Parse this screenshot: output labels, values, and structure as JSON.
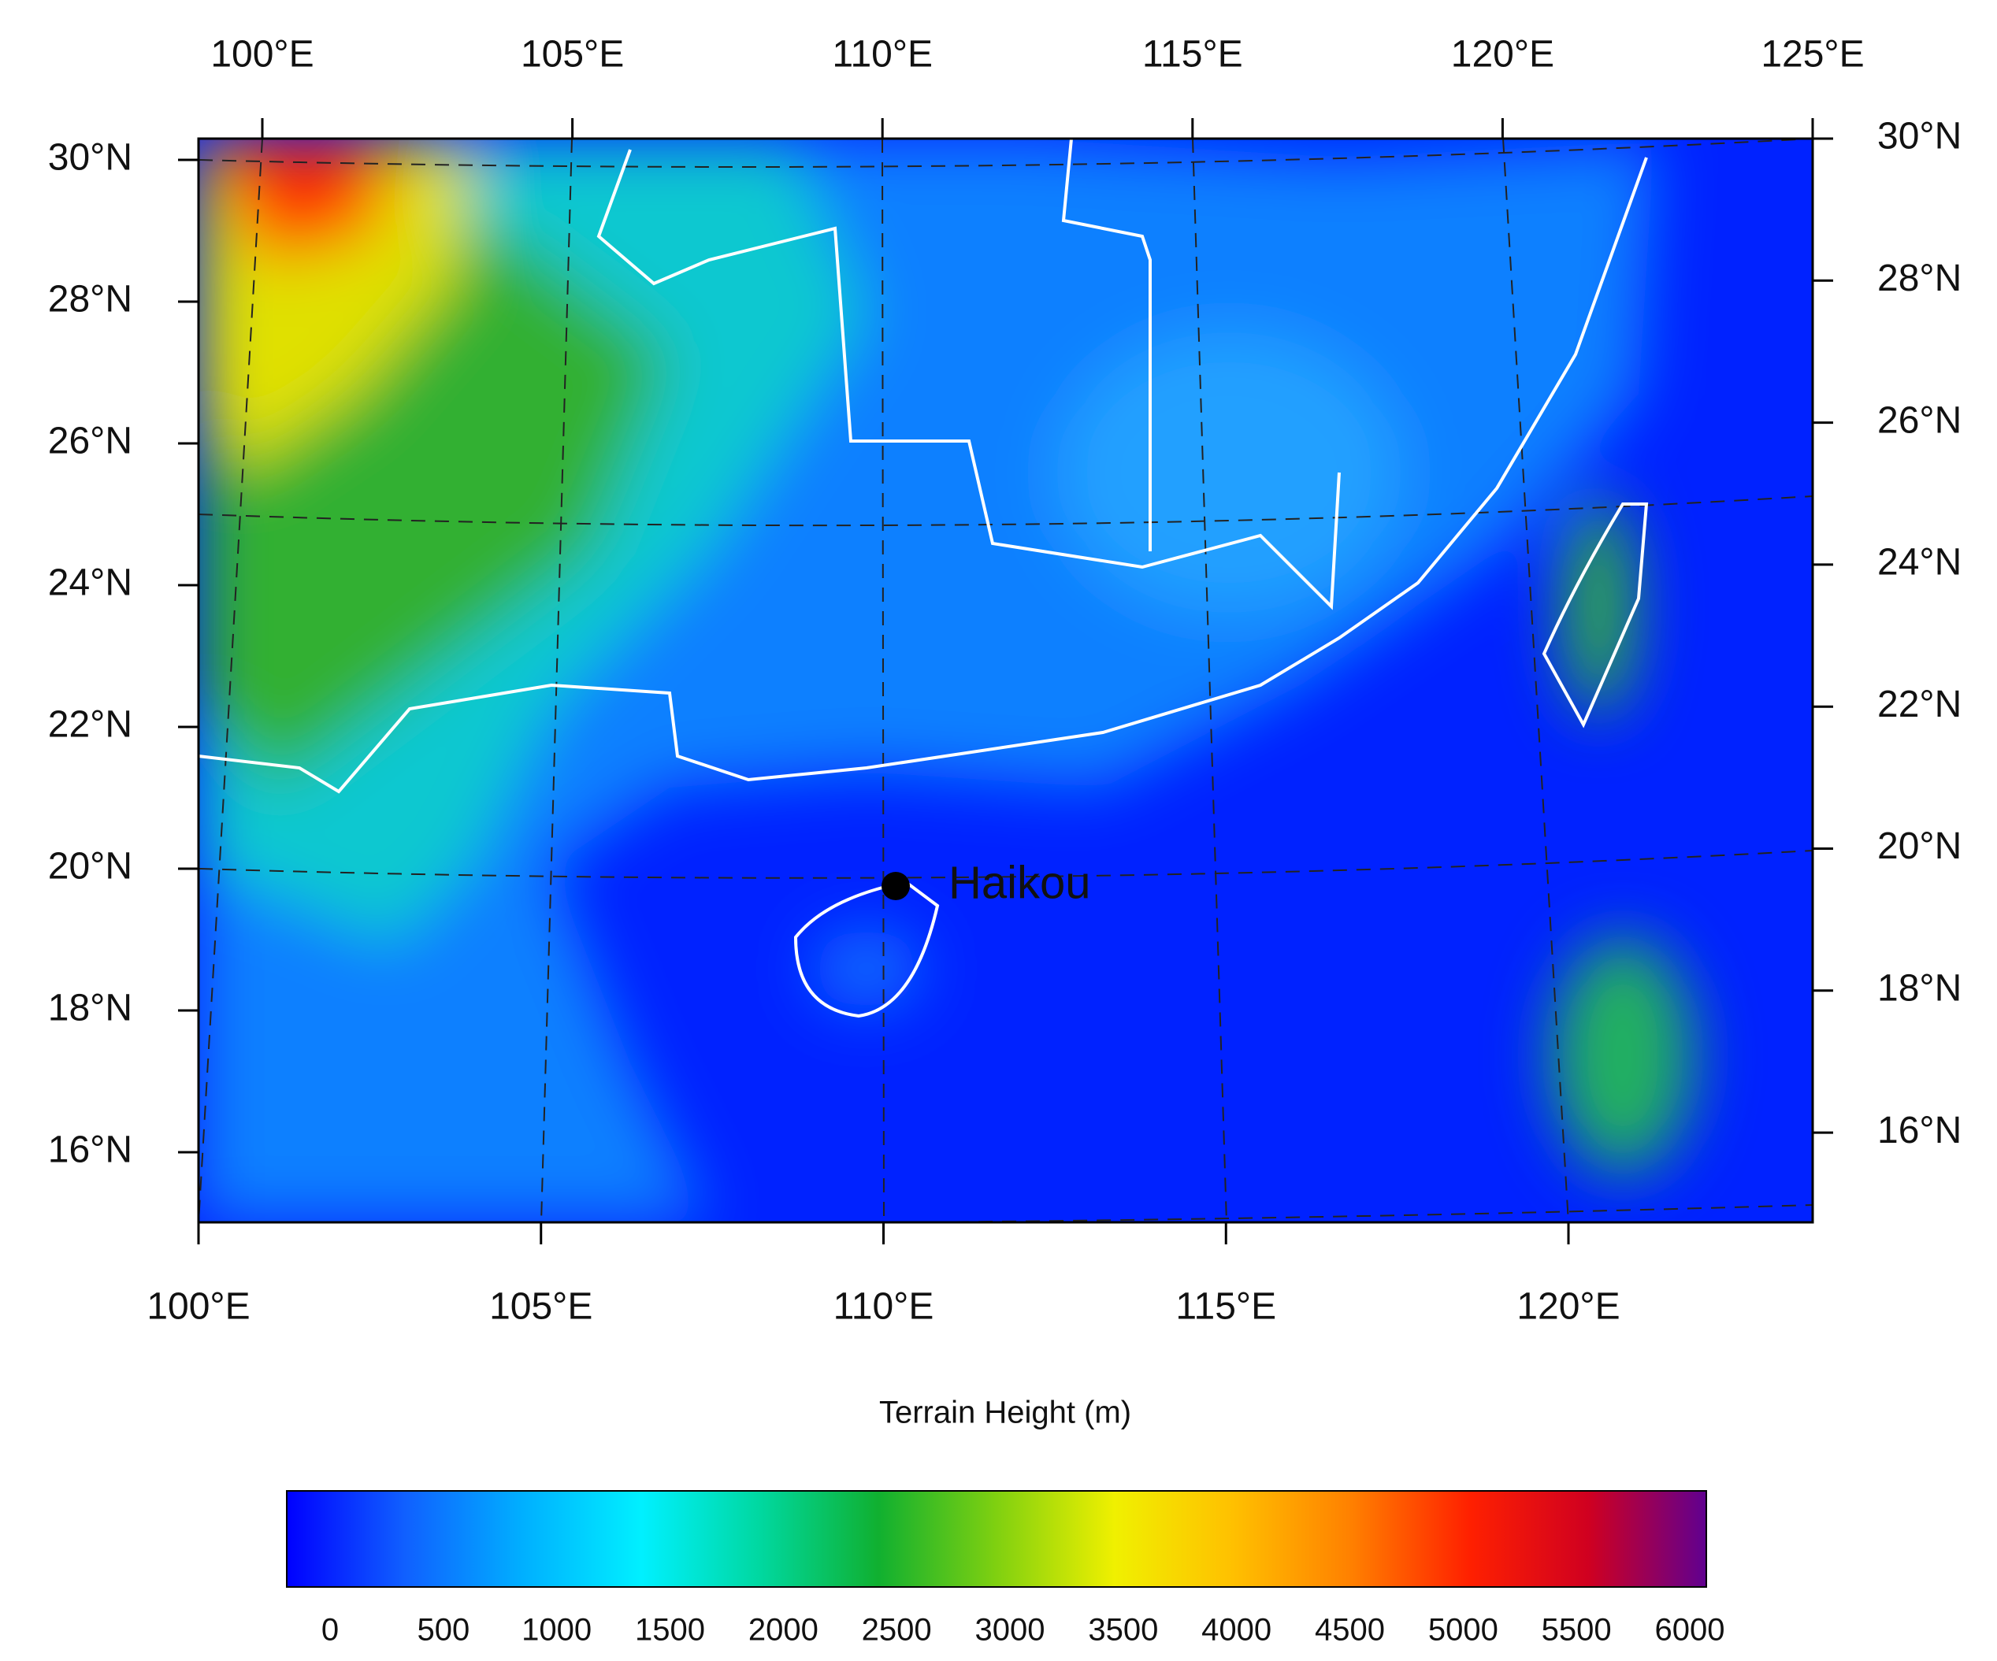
{
  "map": {
    "top_lon_labels": [
      "100°E",
      "105°E",
      "110°E",
      "115°E",
      "120°E",
      "125°E"
    ],
    "bottom_lon_labels": [
      "100°E",
      "105°E",
      "110°E",
      "115°E",
      "120°E"
    ],
    "left_lat_labels": [
      "30°N",
      "28°N",
      "26°N",
      "24°N",
      "22°N",
      "20°N",
      "18°N",
      "16°N"
    ],
    "right_lat_labels": [
      "30°N",
      "28°N",
      "26°N",
      "24°N",
      "22°N",
      "20°N",
      "18°N",
      "16°N"
    ],
    "city": {
      "label": "Haikou",
      "color": "#e0102a"
    }
  },
  "colorbar": {
    "title": "Terrain Height (m)",
    "ticks": [
      0,
      500,
      1000,
      1500,
      2000,
      2500,
      3000,
      3500,
      4000,
      4500,
      5000,
      5500,
      6000
    ],
    "colors": [
      "#0000ff",
      "#1060ff",
      "#00b0ff",
      "#00f0ff",
      "#00d8a0",
      "#10b030",
      "#80d010",
      "#f0f000",
      "#ffc000",
      "#ff8000",
      "#ff2000",
      "#d00020",
      "#600090"
    ]
  }
}
